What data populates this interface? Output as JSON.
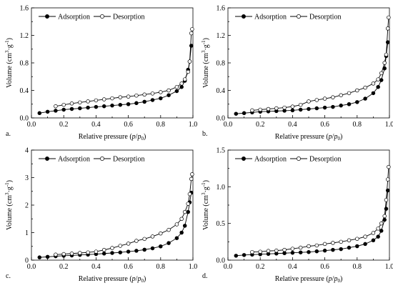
{
  "chart_data": [
    {
      "type": "line",
      "panel_label": "a.",
      "xlabel": "Relative pressure (p/p0)",
      "ylabel": "Volume (cm3·g-1)",
      "xlim": [
        0,
        1.0
      ],
      "ylim": [
        0,
        1.6
      ],
      "xticks": [
        "0.0",
        "0.2",
        "0.4",
        "0.6",
        "0.8",
        "1.0"
      ],
      "yticks": [
        "0.0",
        "0.4",
        "0.8",
        "1.2",
        "1.6"
      ],
      "legend_position": "top",
      "grid": false,
      "series": [
        {
          "name": "Adsorption",
          "marker": "filled-circle",
          "points": [
            [
              0.05,
              0.07
            ],
            [
              0.1,
              0.09
            ],
            [
              0.15,
              0.105
            ],
            [
              0.2,
              0.12
            ],
            [
              0.25,
              0.13
            ],
            [
              0.3,
              0.14
            ],
            [
              0.35,
              0.15
            ],
            [
              0.4,
              0.16
            ],
            [
              0.45,
              0.17
            ],
            [
              0.5,
              0.18
            ],
            [
              0.55,
              0.19
            ],
            [
              0.6,
              0.2
            ],
            [
              0.65,
              0.215
            ],
            [
              0.7,
              0.235
            ],
            [
              0.75,
              0.26
            ],
            [
              0.8,
              0.285
            ],
            [
              0.85,
              0.33
            ],
            [
              0.9,
              0.39
            ],
            [
              0.93,
              0.45
            ],
            [
              0.95,
              0.54
            ],
            [
              0.97,
              0.7
            ],
            [
              0.98,
              0.82
            ],
            [
              0.99,
              1.05
            ]
          ]
        },
        {
          "name": "Desorption",
          "marker": "open-circle",
          "points": [
            [
              0.995,
              1.29
            ],
            [
              0.99,
              1.23
            ],
            [
              0.98,
              0.82
            ],
            [
              0.97,
              0.67
            ],
            [
              0.95,
              0.56
            ],
            [
              0.93,
              0.5
            ],
            [
              0.9,
              0.45
            ],
            [
              0.85,
              0.4
            ],
            [
              0.8,
              0.375
            ],
            [
              0.75,
              0.355
            ],
            [
              0.7,
              0.34
            ],
            [
              0.65,
              0.325
            ],
            [
              0.6,
              0.31
            ],
            [
              0.55,
              0.3
            ],
            [
              0.5,
              0.285
            ],
            [
              0.45,
              0.27
            ],
            [
              0.4,
              0.255
            ],
            [
              0.35,
              0.24
            ],
            [
              0.3,
              0.225
            ],
            [
              0.25,
              0.21
            ],
            [
              0.2,
              0.19
            ],
            [
              0.15,
              0.17
            ]
          ]
        }
      ]
    },
    {
      "type": "line",
      "panel_label": "b.",
      "xlabel": "Relative pressure (p/p0)",
      "ylabel": "Volume (cm3·g-1)",
      "xlim": [
        0,
        1.0
      ],
      "ylim": [
        0,
        1.6
      ],
      "xticks": [
        "0.0",
        "0.2",
        "0.4",
        "0.6",
        "0.8",
        "1.0"
      ],
      "yticks": [
        "0.0",
        "0.4",
        "0.8",
        "1.2",
        "1.6"
      ],
      "legend_position": "top",
      "grid": false,
      "series": [
        {
          "name": "Adsorption",
          "marker": "filled-circle",
          "points": [
            [
              0.05,
              0.06
            ],
            [
              0.1,
              0.07
            ],
            [
              0.15,
              0.08
            ],
            [
              0.2,
              0.09
            ],
            [
              0.25,
              0.095
            ],
            [
              0.3,
              0.1
            ],
            [
              0.35,
              0.105
            ],
            [
              0.4,
              0.11
            ],
            [
              0.45,
              0.12
            ],
            [
              0.5,
              0.13
            ],
            [
              0.55,
              0.14
            ],
            [
              0.6,
              0.15
            ],
            [
              0.65,
              0.16
            ],
            [
              0.7,
              0.18
            ],
            [
              0.75,
              0.2
            ],
            [
              0.8,
              0.23
            ],
            [
              0.85,
              0.28
            ],
            [
              0.9,
              0.36
            ],
            [
              0.93,
              0.45
            ],
            [
              0.95,
              0.55
            ],
            [
              0.97,
              0.72
            ],
            [
              0.98,
              0.9
            ],
            [
              0.99,
              1.1
            ]
          ]
        },
        {
          "name": "Desorption",
          "marker": "open-circle",
          "points": [
            [
              0.995,
              1.46
            ],
            [
              0.99,
              1.3
            ],
            [
              0.98,
              0.92
            ],
            [
              0.97,
              0.8
            ],
            [
              0.95,
              0.65
            ],
            [
              0.93,
              0.56
            ],
            [
              0.9,
              0.5
            ],
            [
              0.85,
              0.44
            ],
            [
              0.8,
              0.4
            ],
            [
              0.75,
              0.36
            ],
            [
              0.7,
              0.33
            ],
            [
              0.65,
              0.3
            ],
            [
              0.6,
              0.28
            ],
            [
              0.55,
              0.26
            ],
            [
              0.5,
              0.24
            ],
            [
              0.45,
              0.19
            ],
            [
              0.4,
              0.165
            ],
            [
              0.35,
              0.15
            ],
            [
              0.3,
              0.14
            ],
            [
              0.25,
              0.13
            ],
            [
              0.2,
              0.12
            ],
            [
              0.15,
              0.11
            ]
          ]
        }
      ]
    },
    {
      "type": "line",
      "panel_label": "c.",
      "xlabel": "Relative pressure (p/p0)",
      "ylabel": "Volume (cm3·g-1)",
      "xlim": [
        0,
        1.0
      ],
      "ylim": [
        0,
        4
      ],
      "xticks": [
        "0.0",
        "0.2",
        "0.4",
        "0.6",
        "0.8",
        "1.0"
      ],
      "yticks": [
        "0",
        "1",
        "2",
        "3",
        "4"
      ],
      "legend_position": "top",
      "grid": false,
      "series": [
        {
          "name": "Adsorption",
          "marker": "filled-circle",
          "points": [
            [
              0.05,
              0.1
            ],
            [
              0.1,
              0.12
            ],
            [
              0.15,
              0.14
            ],
            [
              0.2,
              0.16
            ],
            [
              0.25,
              0.17
            ],
            [
              0.3,
              0.19
            ],
            [
              0.35,
              0.2
            ],
            [
              0.4,
              0.22
            ],
            [
              0.45,
              0.24
            ],
            [
              0.5,
              0.26
            ],
            [
              0.55,
              0.28
            ],
            [
              0.6,
              0.31
            ],
            [
              0.65,
              0.34
            ],
            [
              0.7,
              0.38
            ],
            [
              0.75,
              0.43
            ],
            [
              0.8,
              0.5
            ],
            [
              0.85,
              0.62
            ],
            [
              0.9,
              0.8
            ],
            [
              0.93,
              1.0
            ],
            [
              0.95,
              1.25
            ],
            [
              0.97,
              1.75
            ],
            [
              0.98,
              2.1
            ],
            [
              0.99,
              2.45
            ]
          ]
        },
        {
          "name": "Desorption",
          "marker": "open-circle",
          "points": [
            [
              0.995,
              3.12
            ],
            [
              0.99,
              2.95
            ],
            [
              0.98,
              2.4
            ],
            [
              0.97,
              2.05
            ],
            [
              0.95,
              1.75
            ],
            [
              0.93,
              1.5
            ],
            [
              0.9,
              1.3
            ],
            [
              0.85,
              1.1
            ],
            [
              0.8,
              0.97
            ],
            [
              0.75,
              0.86
            ],
            [
              0.7,
              0.77
            ],
            [
              0.65,
              0.7
            ],
            [
              0.6,
              0.6
            ],
            [
              0.55,
              0.52
            ],
            [
              0.5,
              0.44
            ],
            [
              0.45,
              0.37
            ],
            [
              0.4,
              0.31
            ],
            [
              0.35,
              0.28
            ],
            [
              0.3,
              0.26
            ],
            [
              0.25,
              0.24
            ],
            [
              0.2,
              0.22
            ],
            [
              0.15,
              0.2
            ]
          ]
        }
      ]
    },
    {
      "type": "line",
      "panel_label": "d.",
      "xlabel": "Relative pressure (p/p0)",
      "ylabel": "Volume (cm3·g-1)",
      "xlim": [
        0,
        1.0
      ],
      "ylim": [
        0,
        1.5
      ],
      "xticks": [
        "0.0",
        "0.2",
        "0.4",
        "0.6",
        "0.8",
        "1.0"
      ],
      "yticks": [
        "0.0",
        "0.5",
        "1.0",
        "1.5"
      ],
      "legend_position": "top",
      "grid": false,
      "series": [
        {
          "name": "Adsorption",
          "marker": "filled-circle",
          "points": [
            [
              0.05,
              0.06
            ],
            [
              0.1,
              0.07
            ],
            [
              0.15,
              0.075
            ],
            [
              0.2,
              0.08
            ],
            [
              0.25,
              0.085
            ],
            [
              0.3,
              0.09
            ],
            [
              0.35,
              0.095
            ],
            [
              0.4,
              0.1
            ],
            [
              0.45,
              0.105
            ],
            [
              0.5,
              0.11
            ],
            [
              0.55,
              0.12
            ],
            [
              0.6,
              0.13
            ],
            [
              0.65,
              0.14
            ],
            [
              0.7,
              0.15
            ],
            [
              0.75,
              0.17
            ],
            [
              0.8,
              0.19
            ],
            [
              0.85,
              0.22
            ],
            [
              0.9,
              0.27
            ],
            [
              0.93,
              0.32
            ],
            [
              0.95,
              0.4
            ],
            [
              0.97,
              0.55
            ],
            [
              0.98,
              0.7
            ],
            [
              0.99,
              0.95
            ]
          ]
        },
        {
          "name": "Desorption",
          "marker": "open-circle",
          "points": [
            [
              0.995,
              1.27
            ],
            [
              0.99,
              1.1
            ],
            [
              0.98,
              0.82
            ],
            [
              0.97,
              0.6
            ],
            [
              0.95,
              0.5
            ],
            [
              0.93,
              0.43
            ],
            [
              0.9,
              0.37
            ],
            [
              0.85,
              0.32
            ],
            [
              0.8,
              0.29
            ],
            [
              0.75,
              0.27
            ],
            [
              0.7,
              0.25
            ],
            [
              0.65,
              0.235
            ],
            [
              0.6,
              0.22
            ],
            [
              0.55,
              0.2
            ],
            [
              0.5,
              0.19
            ],
            [
              0.45,
              0.17
            ],
            [
              0.4,
              0.155
            ],
            [
              0.35,
              0.14
            ],
            [
              0.3,
              0.13
            ],
            [
              0.25,
              0.125
            ],
            [
              0.2,
              0.115
            ],
            [
              0.15,
              0.11
            ]
          ]
        }
      ]
    }
  ],
  "colors": {
    "axis": "#000000",
    "adsorption_marker": "#000000",
    "desorption_marker": "#ffffff",
    "line": "#000000"
  }
}
